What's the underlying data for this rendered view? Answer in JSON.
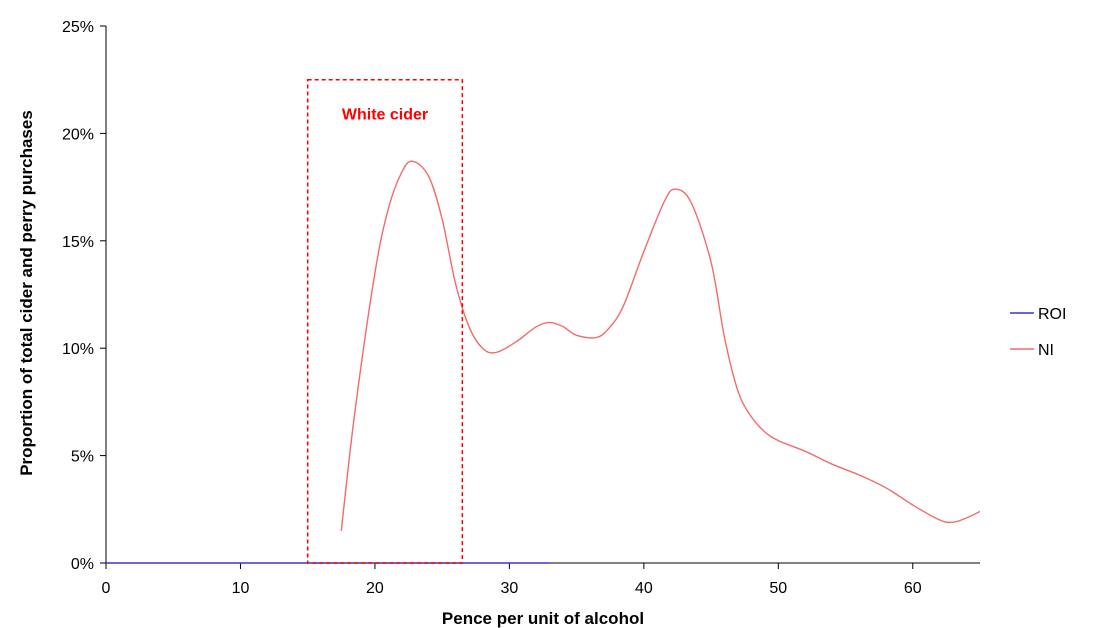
{
  "chart_data": {
    "type": "line",
    "title": "",
    "xlabel": "Pence per unit of alcohol",
    "ylabel": "Proportion of total cider and perry purchases",
    "xlim": [
      0,
      65
    ],
    "ylim": [
      0,
      25
    ],
    "x_ticks": [
      "0",
      "10",
      "20",
      "30",
      "40",
      "50",
      "60"
    ],
    "y_ticks": [
      "0%",
      "5%",
      "10%",
      "15%",
      "20%",
      "25%"
    ],
    "grid": false,
    "legend_position": "right",
    "series": [
      {
        "name": "ROI",
        "color": "#3333dd",
        "points": [
          [
            0,
            0
          ],
          [
            33,
            0
          ],
          [
            37,
            0
          ],
          [
            39.5,
            0
          ],
          [
            41,
            0
          ],
          [
            43,
            0
          ],
          [
            45,
            0
          ],
          [
            47,
            0
          ],
          [
            49,
            0
          ],
          [
            50,
            0
          ],
          [
            52,
            0
          ],
          [
            54,
            0
          ],
          [
            55,
            0
          ],
          [
            57,
            0
          ],
          [
            60,
            0
          ],
          [
            62,
            0
          ],
          [
            63,
            0
          ],
          [
            64,
            0
          ],
          [
            65,
            0
          ]
        ]
      },
      {
        "name": "NI",
        "color": "#f26b6b",
        "points": [
          [
            17.5,
            1.5
          ],
          [
            18.5,
            7
          ],
          [
            20,
            13.5
          ],
          [
            21,
            16.5
          ],
          [
            22,
            18.2
          ],
          [
            22.8,
            18.7
          ],
          [
            24,
            18
          ],
          [
            25,
            16
          ],
          [
            26,
            13
          ],
          [
            27,
            11
          ],
          [
            28,
            10
          ],
          [
            29,
            9.8
          ],
          [
            30.5,
            10.3
          ],
          [
            32,
            11
          ],
          [
            33,
            11.2
          ],
          [
            34,
            11
          ],
          [
            35,
            10.6
          ],
          [
            36.5,
            10.5
          ],
          [
            37.5,
            11
          ],
          [
            38.5,
            12
          ],
          [
            40,
            14.5
          ],
          [
            41.5,
            16.8
          ],
          [
            42.3,
            17.4
          ],
          [
            43.5,
            16.8
          ],
          [
            45,
            14
          ],
          [
            46,
            10.5
          ],
          [
            47,
            8
          ],
          [
            48,
            6.8
          ],
          [
            49,
            6.1
          ],
          [
            50,
            5.7
          ],
          [
            52,
            5.2
          ],
          [
            54,
            4.6
          ],
          [
            56,
            4.1
          ],
          [
            58,
            3.5
          ],
          [
            60,
            2.7
          ],
          [
            62,
            2.0
          ],
          [
            63,
            1.9
          ],
          [
            64,
            2.1
          ],
          [
            65,
            2.4
          ]
        ]
      }
    ],
    "annotation": {
      "label": "White cider",
      "x_range": [
        15,
        26.5
      ],
      "y_range": [
        0,
        22.5
      ],
      "color": "#ff0000"
    }
  }
}
